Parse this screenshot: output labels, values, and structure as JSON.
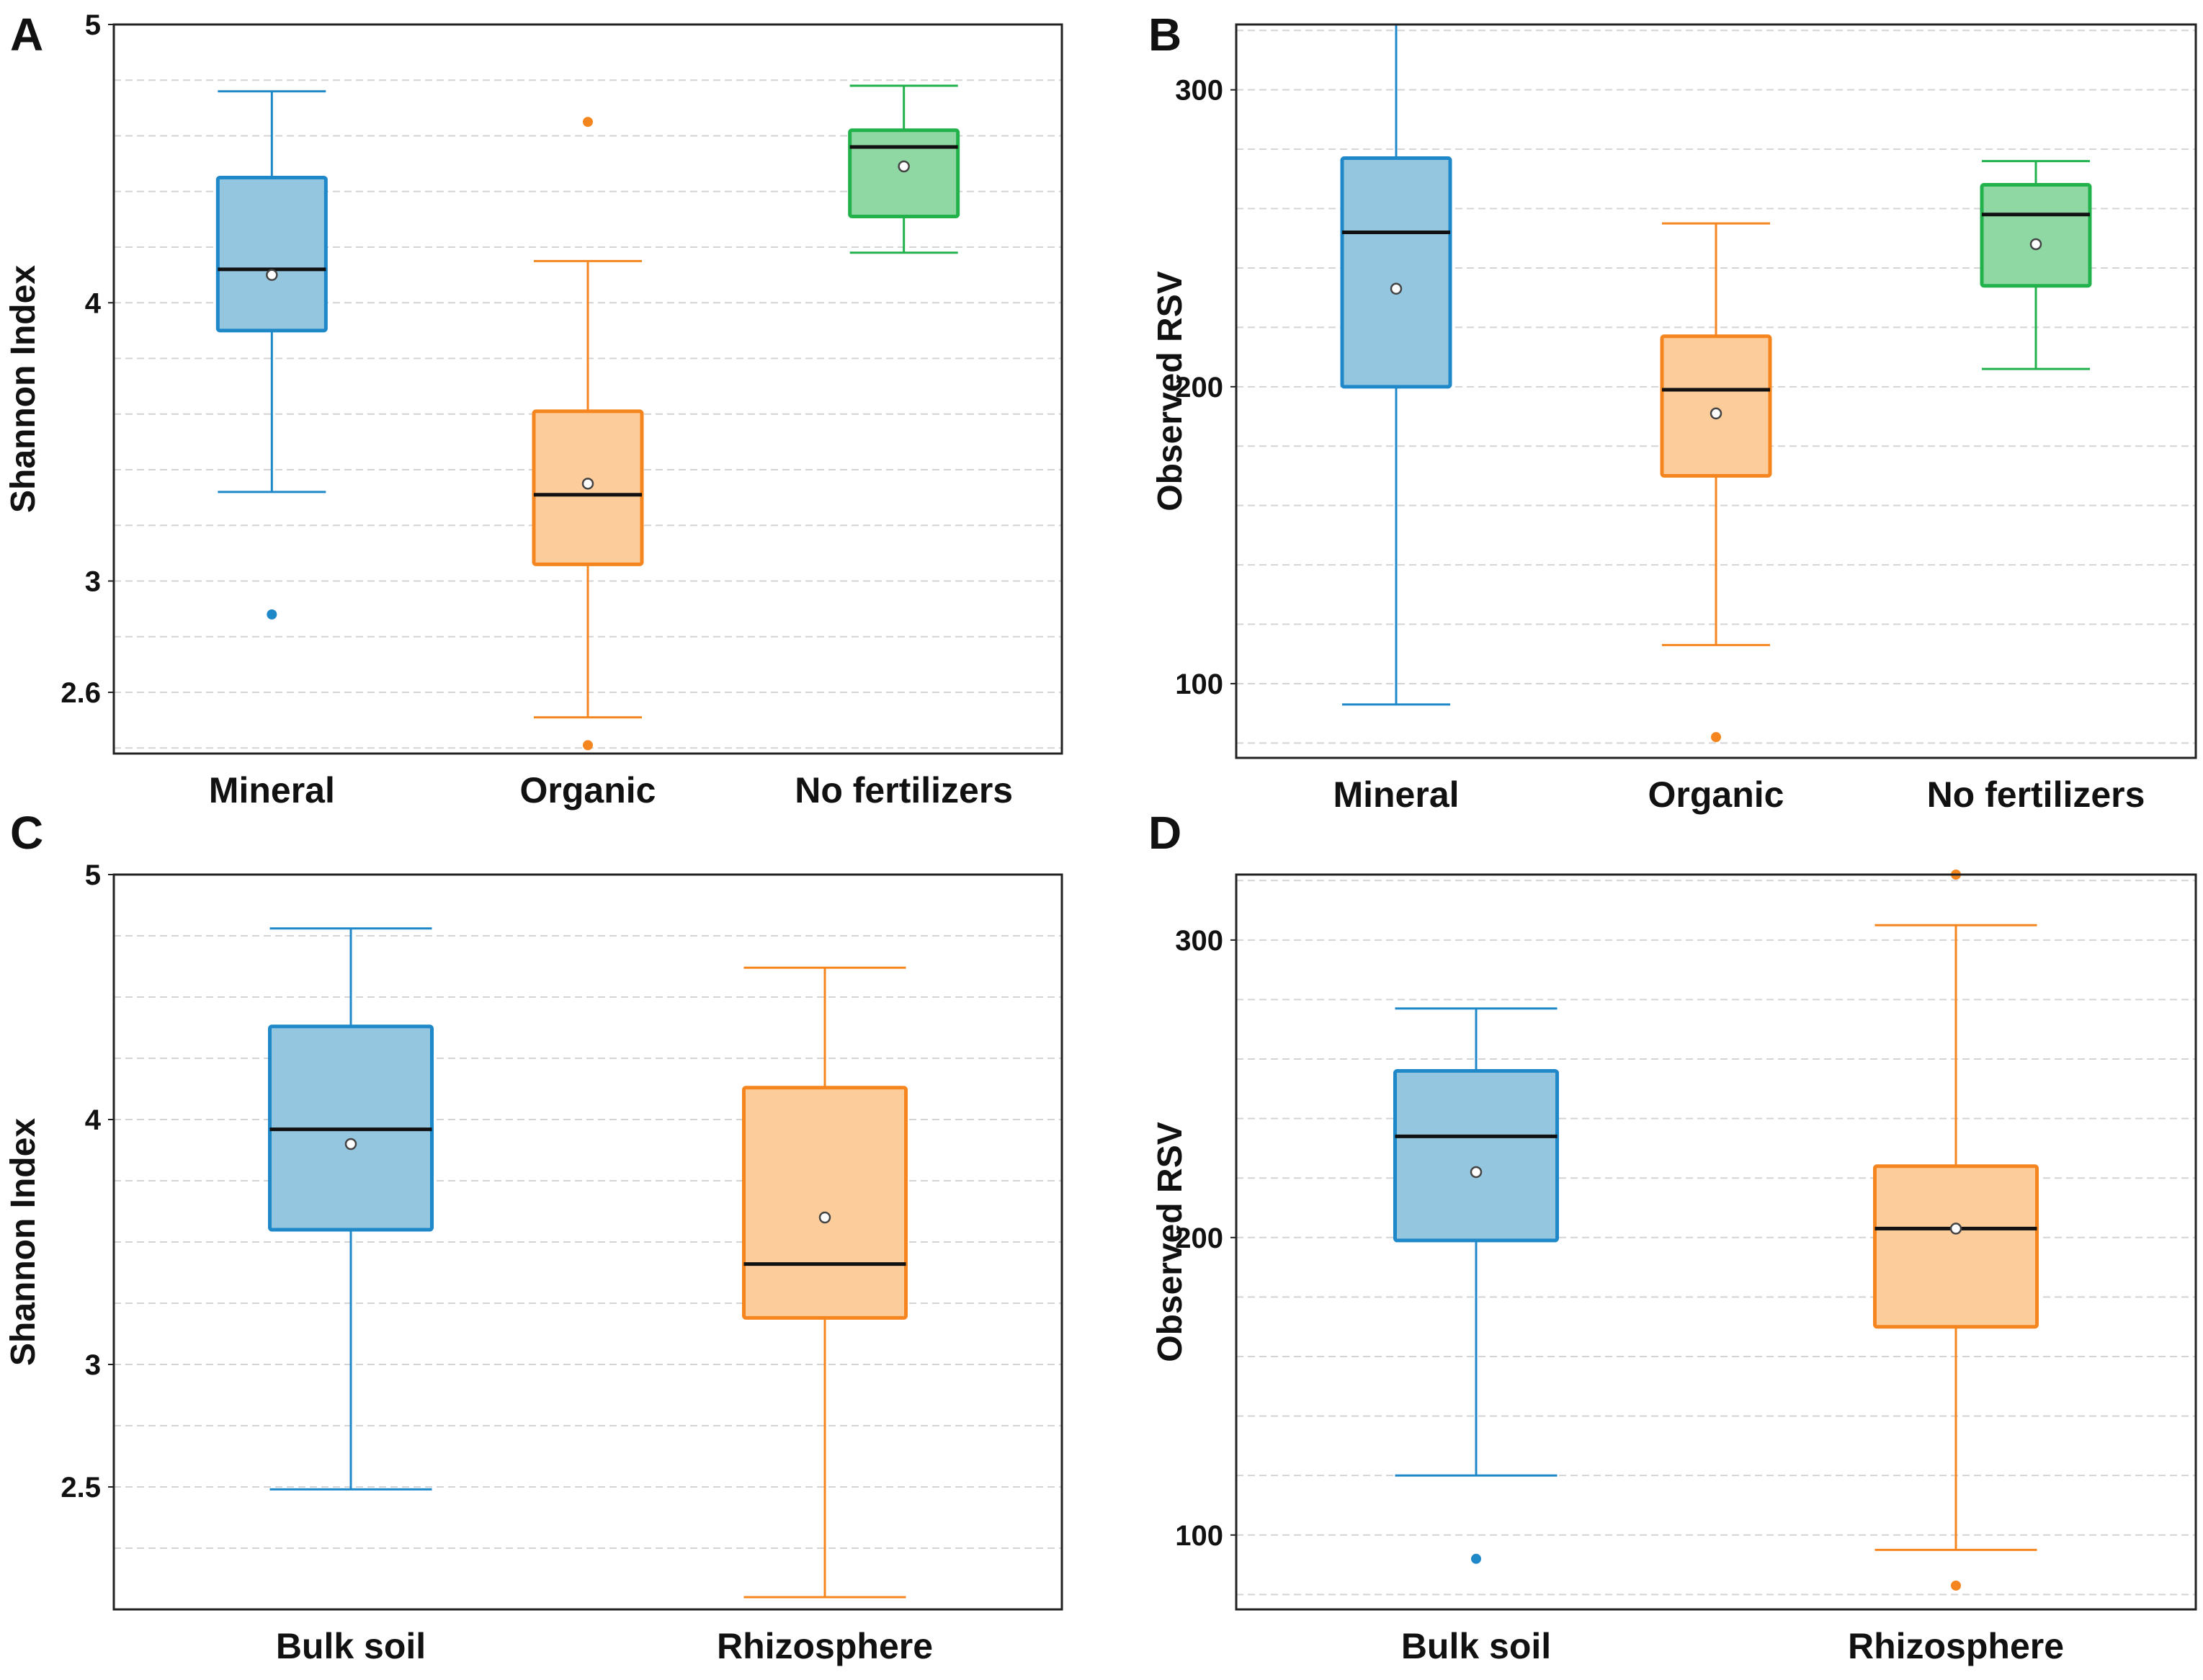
{
  "figure": {
    "panels": [
      "A",
      "B",
      "C",
      "D"
    ]
  },
  "chart_data": [
    {
      "panel": "A",
      "type": "box",
      "title": "",
      "xlabel": "",
      "ylabel": "Shannon Index",
      "ylim": [
        2.38,
        5.0
      ],
      "yticks": [
        2.6,
        3,
        4,
        5
      ],
      "yticklabels": [
        "2.6",
        "3",
        "4",
        "5"
      ],
      "grid": true,
      "categories": [
        "Mineral",
        "Organic",
        "No fertilizers"
      ],
      "colors": [
        "#1f88c9",
        "#f5861f",
        "#21b24b"
      ],
      "fills": [
        "#95c6e0",
        "#fccc9b",
        "#8fd8a3"
      ],
      "boxes": [
        {
          "name": "Mineral",
          "whislo": 3.32,
          "q1": 3.9,
          "med": 4.12,
          "q3": 4.45,
          "whishi": 4.76,
          "mean": 4.1,
          "fliers": [
            2.88
          ]
        },
        {
          "name": "Organic",
          "whislo": 2.51,
          "q1": 3.06,
          "med": 3.31,
          "q3": 3.61,
          "whishi": 4.15,
          "mean": 3.35,
          "fliers": [
            4.65,
            2.41
          ]
        },
        {
          "name": "No fertilizers",
          "whislo": 4.18,
          "q1": 4.31,
          "med": 4.56,
          "q3": 4.62,
          "whishi": 4.78,
          "mean": 4.49,
          "fliers": []
        }
      ]
    },
    {
      "panel": "B",
      "type": "box",
      "title": "",
      "xlabel": "",
      "ylabel": "Observed RSV",
      "ylim": [
        75,
        322
      ],
      "yticks": [
        100,
        200,
        300
      ],
      "yticklabels": [
        "100",
        "200",
        "300"
      ],
      "grid": true,
      "categories": [
        "Mineral",
        "Organic",
        "No fertilizers"
      ],
      "colors": [
        "#1f88c9",
        "#f5861f",
        "#21b24b"
      ],
      "fills": [
        "#95c6e0",
        "#fccc9b",
        "#8fd8a3"
      ],
      "boxes": [
        {
          "name": "Mineral",
          "whislo": 93,
          "q1": 200,
          "med": 252,
          "q3": 277,
          "whishi": 322,
          "mean": 233,
          "fliers": []
        },
        {
          "name": "Organic",
          "whislo": 113,
          "q1": 170,
          "med": 199,
          "q3": 217,
          "whishi": 255,
          "mean": 191,
          "fliers": [
            82
          ]
        },
        {
          "name": "No fertilizers",
          "whislo": 206,
          "q1": 234,
          "med": 258,
          "q3": 268,
          "whishi": 276,
          "mean": 248,
          "fliers": []
        }
      ]
    },
    {
      "panel": "C",
      "type": "box",
      "title": "",
      "xlabel": "",
      "ylabel": "Shannon Index",
      "ylim": [
        2.0,
        5.0
      ],
      "yticks": [
        2.5,
        3,
        4,
        5
      ],
      "yticklabels": [
        "2.5",
        "3",
        "4",
        "5"
      ],
      "grid": true,
      "categories": [
        "Bulk soil",
        "Rhizosphere"
      ],
      "colors": [
        "#1f88c9",
        "#f5861f"
      ],
      "fills": [
        "#95c6e0",
        "#fccc9b"
      ],
      "boxes": [
        {
          "name": "Bulk soil",
          "whislo": 2.49,
          "q1": 3.55,
          "med": 3.96,
          "q3": 4.38,
          "whishi": 4.78,
          "mean": 3.9,
          "fliers": []
        },
        {
          "name": "Rhizosphere",
          "whislo": 2.05,
          "q1": 3.19,
          "med": 3.41,
          "q3": 4.13,
          "whishi": 4.62,
          "mean": 3.6,
          "fliers": []
        }
      ]
    },
    {
      "panel": "D",
      "type": "box",
      "title": "",
      "xlabel": "",
      "ylabel": "Observed RSV",
      "ylim": [
        75,
        322
      ],
      "yticks": [
        100,
        200,
        300
      ],
      "yticklabels": [
        "100",
        "200",
        "300"
      ],
      "grid": true,
      "categories": [
        "Bulk soil",
        "Rhizosphere"
      ],
      "colors": [
        "#1f88c9",
        "#f5861f"
      ],
      "fills": [
        "#95c6e0",
        "#fccc9b"
      ],
      "boxes": [
        {
          "name": "Bulk soil",
          "whislo": 120,
          "q1": 199,
          "med": 234,
          "q3": 256,
          "whishi": 277,
          "mean": 222,
          "fliers": [
            92
          ]
        },
        {
          "name": "Rhizosphere",
          "whislo": 95,
          "q1": 170,
          "med": 203,
          "q3": 224,
          "whishi": 305,
          "mean": 203,
          "fliers": [
            322,
            83
          ]
        }
      ]
    }
  ]
}
